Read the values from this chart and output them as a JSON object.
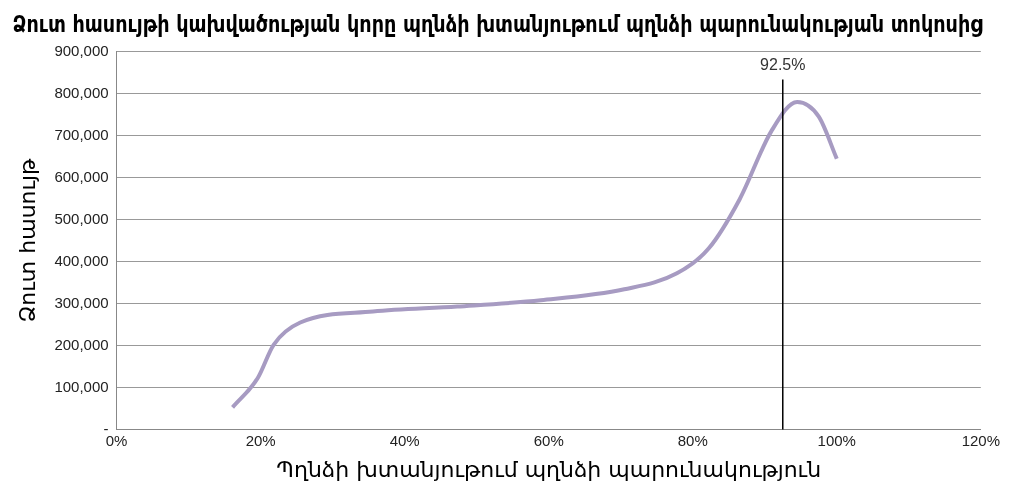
{
  "chart_data": {
    "type": "line",
    "title": "Ձուտ հասույթի կախվածության կորը պղնձի խտանյութում պղնձի պարունակության տոկոսից",
    "xlabel": "Պղնձի խտանյութում պղնձի պարունակություն",
    "ylabel": "Ձուտ հասույթ",
    "series": [
      {
        "color": "#a79bc2",
        "x": [
          16.1,
          19.6,
          21.8,
          25.5,
          35.6,
          47.3,
          58.9,
          70.5,
          77.8,
          82.2,
          86.5,
          90.9,
          94.5,
          97.5,
          100
        ],
        "values": [
          53000,
          123000,
          202000,
          255000,
          281000,
          293000,
          308000,
          334000,
          372000,
          431000,
          548000,
          710000,
          780000,
          745000,
          645000
        ]
      }
    ],
    "xlim": [
      0,
      120
    ],
    "xticks": [
      {
        "value": 0,
        "label": "0%"
      },
      {
        "value": 20,
        "label": "20%"
      },
      {
        "value": 40,
        "label": "40%"
      },
      {
        "value": 60,
        "label": "60%"
      },
      {
        "value": 80,
        "label": "80%"
      },
      {
        "value": 100,
        "label": "100%"
      },
      {
        "value": 120,
        "label": "120%"
      }
    ],
    "ylim": [
      0,
      900000
    ],
    "yticks": [
      {
        "value": 0,
        "label": "-"
      },
      {
        "value": 100000,
        "label": "100,000"
      },
      {
        "value": 200000,
        "label": "200,000"
      },
      {
        "value": 300000,
        "label": "300,000"
      },
      {
        "value": 400000,
        "label": "400,000"
      },
      {
        "value": 500000,
        "label": "500,000"
      },
      {
        "value": 600000,
        "label": "600,000"
      },
      {
        "value": 700000,
        "label": "700,000"
      },
      {
        "value": 800000,
        "label": "800,000"
      },
      {
        "value": 900000,
        "label": "900,000"
      }
    ],
    "ref_lines": [
      {
        "axis": "x",
        "value": 92.5,
        "label": "92.5%",
        "color": "#000000"
      }
    ],
    "grid": "y",
    "legend": false,
    "marker": "none",
    "line_style": "solid"
  }
}
